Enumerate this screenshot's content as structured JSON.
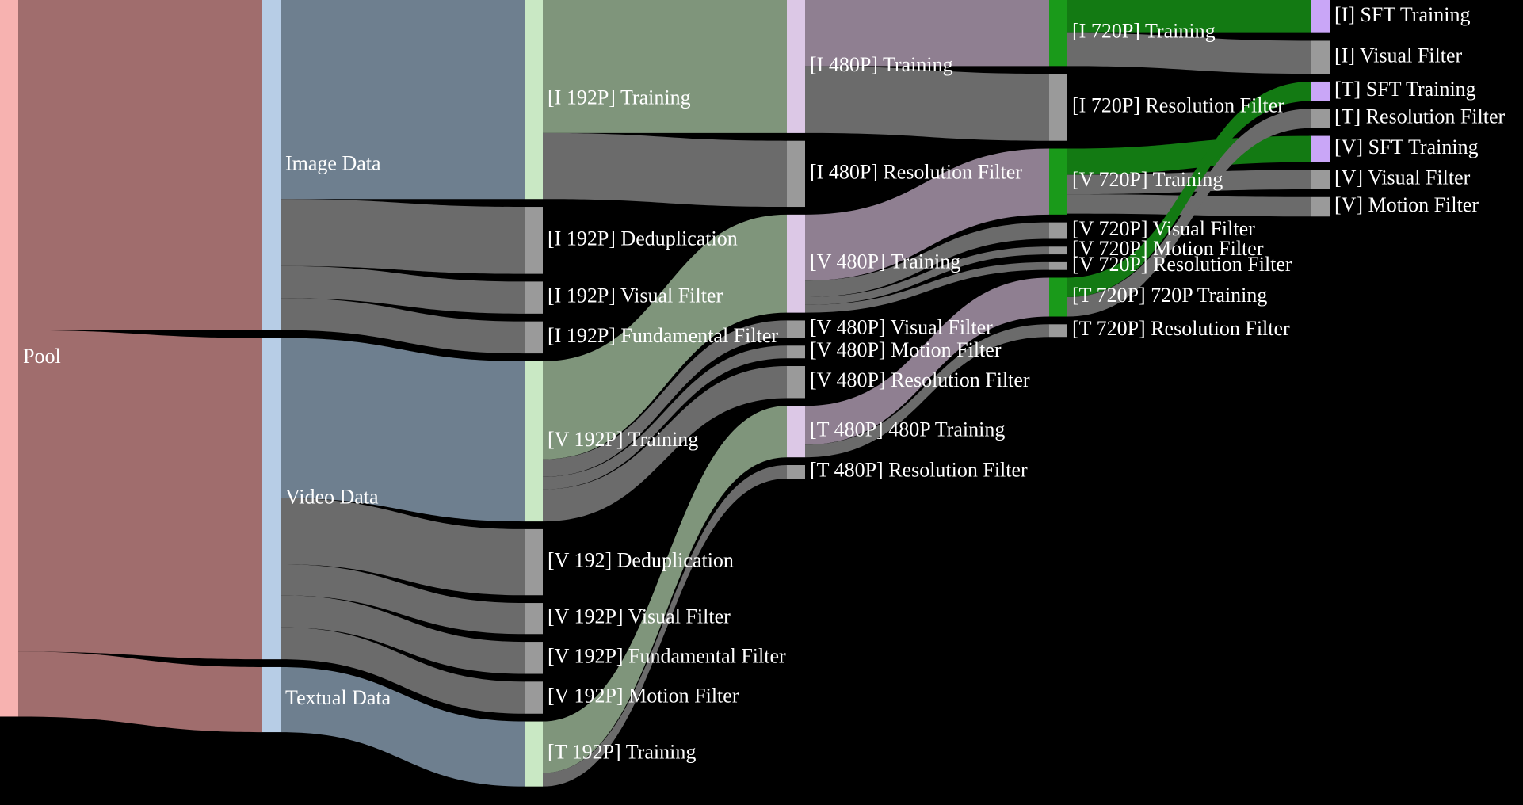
{
  "chart_data": {
    "type": "sankey",
    "nodes": [
      {
        "name": "Pool",
        "color": "#f7b2b0"
      },
      {
        "name": "Image Data",
        "color": "#b7cde6"
      },
      {
        "name": "Video Data",
        "color": "#b7cde6"
      },
      {
        "name": "Textual Data",
        "color": "#b7cde6"
      },
      {
        "name": "[I 192P] Training",
        "color": "#c9e8c4"
      },
      {
        "name": "[I 192P] Deduplication",
        "color": "#9a9a9a"
      },
      {
        "name": "[I 192P] Visual Filter",
        "color": "#9a9a9a"
      },
      {
        "name": "[I 192P] Fundamental Filter",
        "color": "#9a9a9a"
      },
      {
        "name": "[V 192P] Training",
        "color": "#c9e8c4"
      },
      {
        "name": "[V 192] Deduplication",
        "color": "#9a9a9a"
      },
      {
        "name": "[V 192P] Visual Filter",
        "color": "#9a9a9a"
      },
      {
        "name": "[V 192P] Fundamental Filter",
        "color": "#9a9a9a"
      },
      {
        "name": "[V 192P] Motion Filter",
        "color": "#9a9a9a"
      },
      {
        "name": "[T 192P] Training",
        "color": "#c9e8c4"
      },
      {
        "name": "[I 480P] Training",
        "color": "#dcc8e6"
      },
      {
        "name": "[I 480P] Resolution Filter",
        "color": "#9a9a9a"
      },
      {
        "name": "[V 480P] Training",
        "color": "#dcc8e6"
      },
      {
        "name": "[V 480P] Visual Filter",
        "color": "#9a9a9a"
      },
      {
        "name": "[V 480P] Motion Filter",
        "color": "#9a9a9a"
      },
      {
        "name": "[V 480P] Resolution Filter",
        "color": "#9a9a9a"
      },
      {
        "name": "[T 480P] 480P Training",
        "color": "#dcc8e6"
      },
      {
        "name": "[T 480P] Resolution Filter",
        "color": "#9a9a9a"
      },
      {
        "name": "[I 720P] Training",
        "color": "#1a9a1a"
      },
      {
        "name": "[I 720P] Resolution Filter",
        "color": "#9a9a9a"
      },
      {
        "name": "[V 720P] Training",
        "color": "#1a9a1a"
      },
      {
        "name": "[V 720P] Visual Filter",
        "color": "#9a9a9a"
      },
      {
        "name": "[V 720P] Motion Filter",
        "color": "#9a9a9a"
      },
      {
        "name": "[V 720P] Resolution Filter",
        "color": "#9a9a9a"
      },
      {
        "name": "[T 720P] 720P Training",
        "color": "#1a9a1a"
      },
      {
        "name": "[T 720P] Resolution Filter",
        "color": "#9a9a9a"
      },
      {
        "name": "[I] SFT Training",
        "color": "#c9a6f7"
      },
      {
        "name": "[I] Visual Filter",
        "color": "#9a9a9a"
      },
      {
        "name": "[T] SFT Training",
        "color": "#c9a6f7"
      },
      {
        "name": "[T] Resolution Filter",
        "color": "#9a9a9a"
      },
      {
        "name": "[V] SFT Training",
        "color": "#c9a6f7"
      },
      {
        "name": "[V] Visual Filter",
        "color": "#9a9a9a"
      },
      {
        "name": "[V] Motion Filter",
        "color": "#9a9a9a"
      }
    ],
    "links": [
      {
        "source": 0,
        "target": 1,
        "value": 340,
        "color": "#a06d6d"
      },
      {
        "source": 0,
        "target": 2,
        "value": 331,
        "color": "#a06d6d"
      },
      {
        "source": 0,
        "target": 3,
        "value": 67,
        "color": "#a06d6d"
      },
      {
        "source": 1,
        "target": 4,
        "value": 205,
        "color": "#6e7f8f"
      },
      {
        "source": 1,
        "target": 5,
        "value": 69,
        "color": "#6b6b6b"
      },
      {
        "source": 1,
        "target": 6,
        "value": 33,
        "color": "#6b6b6b"
      },
      {
        "source": 1,
        "target": 7,
        "value": 33,
        "color": "#6b6b6b"
      },
      {
        "source": 2,
        "target": 8,
        "value": 165,
        "color": "#6e7f8f"
      },
      {
        "source": 2,
        "target": 9,
        "value": 68,
        "color": "#6b6b6b"
      },
      {
        "source": 2,
        "target": 10,
        "value": 32,
        "color": "#6b6b6b"
      },
      {
        "source": 2,
        "target": 11,
        "value": 33,
        "color": "#6b6b6b"
      },
      {
        "source": 2,
        "target": 12,
        "value": 33,
        "color": "#6b6b6b"
      },
      {
        "source": 3,
        "target": 13,
        "value": 67,
        "color": "#6e7f8f"
      },
      {
        "source": 4,
        "target": 14,
        "value": 137,
        "color": "#7f957b"
      },
      {
        "source": 4,
        "target": 15,
        "value": 68,
        "color": "#6b6b6b"
      },
      {
        "source": 8,
        "target": 16,
        "value": 101,
        "color": "#7f957b"
      },
      {
        "source": 8,
        "target": 17,
        "value": 18,
        "color": "#6b6b6b"
      },
      {
        "source": 8,
        "target": 18,
        "value": 13,
        "color": "#6b6b6b"
      },
      {
        "source": 8,
        "target": 19,
        "value": 33,
        "color": "#6b6b6b"
      },
      {
        "source": 13,
        "target": 20,
        "value": 53,
        "color": "#7f957b"
      },
      {
        "source": 13,
        "target": 21,
        "value": 14,
        "color": "#6b6b6b"
      },
      {
        "source": 14,
        "target": 22,
        "value": 68,
        "color": "#8f7f91"
      },
      {
        "source": 14,
        "target": 23,
        "value": 69,
        "color": "#6b6b6b"
      },
      {
        "source": 16,
        "target": 24,
        "value": 68,
        "color": "#8f7f91"
      },
      {
        "source": 16,
        "target": 25,
        "value": 17,
        "color": "#6b6b6b"
      },
      {
        "source": 16,
        "target": 26,
        "value": 8,
        "color": "#6b6b6b"
      },
      {
        "source": 16,
        "target": 27,
        "value": 8,
        "color": "#6b6b6b"
      },
      {
        "source": 20,
        "target": 28,
        "value": 40,
        "color": "#8f7f91"
      },
      {
        "source": 20,
        "target": 29,
        "value": 13,
        "color": "#6b6b6b"
      },
      {
        "source": 22,
        "target": 30,
        "value": 34,
        "color": "#137a13"
      },
      {
        "source": 22,
        "target": 31,
        "value": 34,
        "color": "#6b6b6b"
      },
      {
        "source": 24,
        "target": 34,
        "value": 27,
        "color": "#137a13"
      },
      {
        "source": 24,
        "target": 35,
        "value": 20,
        "color": "#6b6b6b"
      },
      {
        "source": 24,
        "target": 36,
        "value": 20,
        "color": "#6b6b6b"
      },
      {
        "source": 28,
        "target": 32,
        "value": 20,
        "color": "#137a13"
      },
      {
        "source": 28,
        "target": 33,
        "value": 20,
        "color": "#6b6b6b"
      }
    ]
  }
}
